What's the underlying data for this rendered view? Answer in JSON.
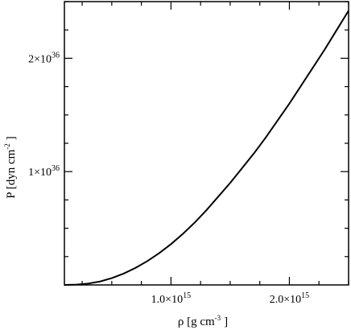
{
  "chart_data": {
    "type": "line",
    "title": "",
    "xlabel": "ρ [g cm",
    "xlabel_exp": "-3",
    "xlabel_tail": "]",
    "ylabel": "P [dyn  cm",
    "ylabel_exp": "-2",
    "ylabel_tail": "]",
    "xlim": [
      100000000000000.0,
      2500000000000000.0
    ],
    "ylim": [
      0,
      2.5e+36
    ],
    "x_ticks": [
      {
        "value": 1000000000000000.0,
        "mantissa": "1.0",
        "base": "×10",
        "exp": "15"
      },
      {
        "value": 2000000000000000.0,
        "mantissa": "2.0",
        "base": "×10",
        "exp": "15"
      }
    ],
    "y_ticks": [
      {
        "value": 1e+36,
        "mantissa": "1",
        "base": "×10",
        "exp": "36"
      },
      {
        "value": 2e+36,
        "mantissa": "2",
        "base": "×10",
        "exp": "36"
      }
    ],
    "x_minor_step": 250000000000000.0,
    "y_minor_step": 2.5e+35,
    "grid": false,
    "legend": "none",
    "series": [
      {
        "color": "#000000",
        "points": [
          [
            100000000000000.0,
            0.0
          ],
          [
            200000000000000.0,
            3e+33
          ],
          [
            300000000000000.0,
            1.2e+34
          ],
          [
            400000000000000.0,
            3e+34
          ],
          [
            500000000000000.0,
            6e+34
          ],
          [
            600000000000000.0,
            1e+35
          ],
          [
            700000000000000.0,
            1.5e+35
          ],
          [
            800000000000000.0,
            2.1e+35
          ],
          [
            900000000000000.0,
            2.8e+35
          ],
          [
            1000000000000000.0,
            3.6e+35
          ],
          [
            1100000000000000.0,
            4.5e+35
          ],
          [
            1200000000000000.0,
            5.5e+35
          ],
          [
            1300000000000000.0,
            6.6e+35
          ],
          [
            1400000000000000.0,
            7.8e+35
          ],
          [
            1500000000000000.0,
            9e+35
          ],
          [
            1600000000000000.0,
            1.03e+36
          ],
          [
            1700000000000000.0,
            1.16e+36
          ],
          [
            1800000000000000.0,
            1.3e+36
          ],
          [
            1900000000000000.0,
            1.45e+36
          ],
          [
            2000000000000000.0,
            1.6e+36
          ],
          [
            2100000000000000.0,
            1.76e+36
          ],
          [
            2200000000000000.0,
            1.92e+36
          ],
          [
            2300000000000000.0,
            2.08e+36
          ],
          [
            2400000000000000.0,
            2.25e+36
          ],
          [
            2500000000000000.0,
            2.42e+36
          ]
        ]
      }
    ]
  }
}
